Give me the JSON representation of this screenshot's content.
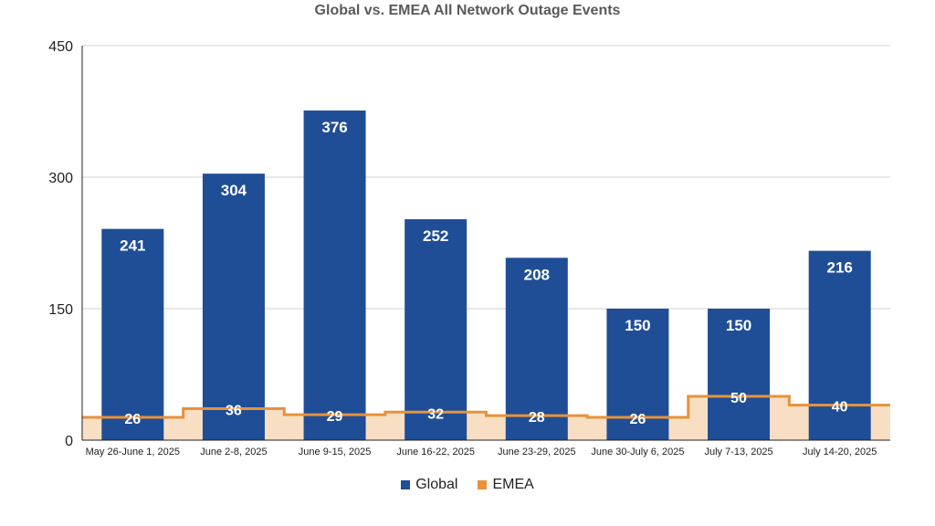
{
  "chart_data": {
    "type": "bar",
    "title": "Global vs. EMEA All Network Outage Events",
    "categories": [
      "May 26-June 1, 2025",
      "June 2-8, 2025",
      "June 9-15, 2025",
      "June 16-22, 2025",
      "June 23-29, 2025",
      "June 30-July 6, 2025",
      "July 7-13, 2025",
      "July 14-20, 2025"
    ],
    "series": [
      {
        "name": "Global",
        "type": "bar",
        "color": "#1f4e96",
        "values": [
          241,
          304,
          376,
          252,
          208,
          150,
          150,
          216
        ]
      },
      {
        "name": "EMEA",
        "type": "stepped-area",
        "color": "#e8923a",
        "fill": "#f8dfc4",
        "values": [
          26,
          36,
          29,
          32,
          28,
          26,
          50,
          40
        ]
      }
    ],
    "ylim": [
      0,
      450
    ],
    "yticks": [
      "0",
      "150",
      "300",
      "450"
    ],
    "grid": true,
    "legend_position": "bottom"
  }
}
